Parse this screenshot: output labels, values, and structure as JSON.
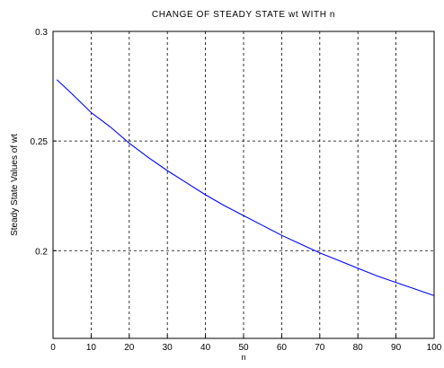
{
  "chart_data": {
    "type": "line",
    "title": "CHANGE OF STEADY STATE wt WITH n",
    "xlabel": "n",
    "ylabel": "Steady State Values of wt",
    "xlim": [
      0,
      100
    ],
    "ylim": [
      0.16,
      0.3
    ],
    "x_ticks": [
      0,
      10,
      20,
      30,
      40,
      50,
      60,
      70,
      80,
      90,
      100
    ],
    "y_ticks": [
      0.2,
      0.25,
      0.3
    ],
    "x_tick_labels": [
      "0",
      "10",
      "20",
      "30",
      "40",
      "50",
      "60",
      "70",
      "80",
      "90",
      "100"
    ],
    "y_tick_labels": [
      "0.2",
      "0.25",
      "0.3"
    ],
    "grid": true,
    "grid_style": "dashed",
    "series": [
      {
        "color": "#0000ff",
        "x": [
          1,
          5,
          10,
          15,
          20,
          25,
          30,
          35,
          40,
          45,
          50,
          55,
          60,
          65,
          70,
          75,
          80,
          85,
          90,
          95,
          100
        ],
        "y": [
          0.278,
          0.2715,
          0.263,
          0.2565,
          0.249,
          0.2425,
          0.2365,
          0.231,
          0.2255,
          0.2205,
          0.216,
          0.2115,
          0.207,
          0.203,
          0.199,
          0.1955,
          0.192,
          0.1885,
          0.1855,
          0.1825,
          0.1795
        ]
      }
    ]
  }
}
